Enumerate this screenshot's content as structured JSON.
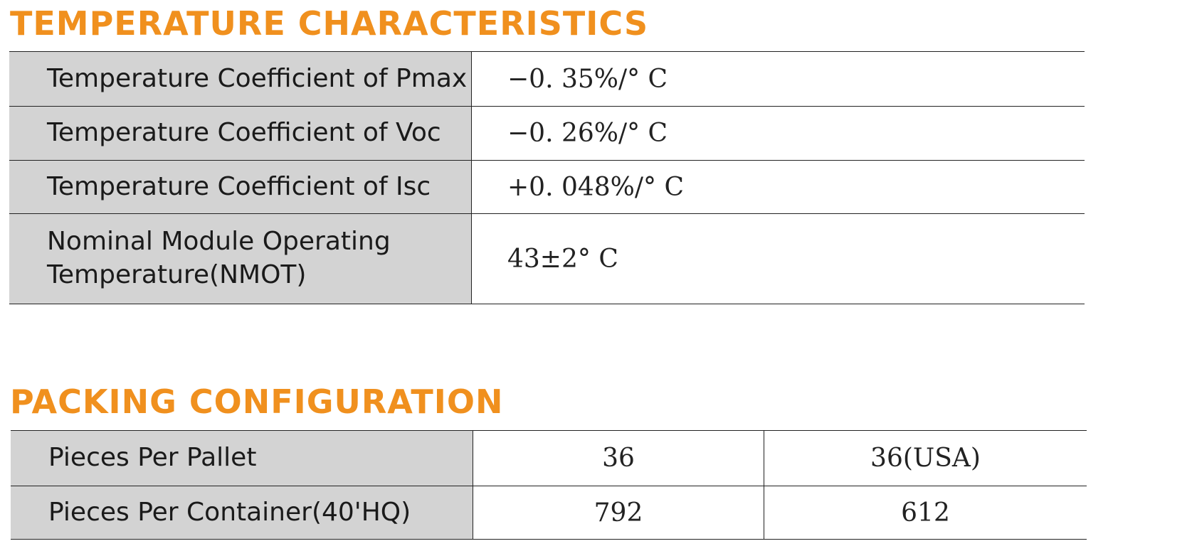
{
  "sections": [
    {
      "title": "TEMPERATURE CHARACTERISTICS",
      "table": {
        "rows": [
          [
            "Temperature Coefficient of Pmax",
            "−0. 35%/°  C"
          ],
          [
            "Temperature Coefficient of Voc",
            "−0. 26%/°  C"
          ],
          [
            "Temperature Coefficient of Isc",
            "+0. 048%/°  C"
          ],
          [
            "Nominal Module Operating Temperature(NMOT)",
            "43±2°  C"
          ]
        ]
      }
    },
    {
      "title": "PACKING CONFIGURATION",
      "table": {
        "rows": [
          [
            "Pieces Per Pallet",
            "36",
            "36(USA)"
          ],
          [
            "Pieces Per Container(40'HQ)",
            "792",
            "612"
          ]
        ]
      }
    }
  ]
}
